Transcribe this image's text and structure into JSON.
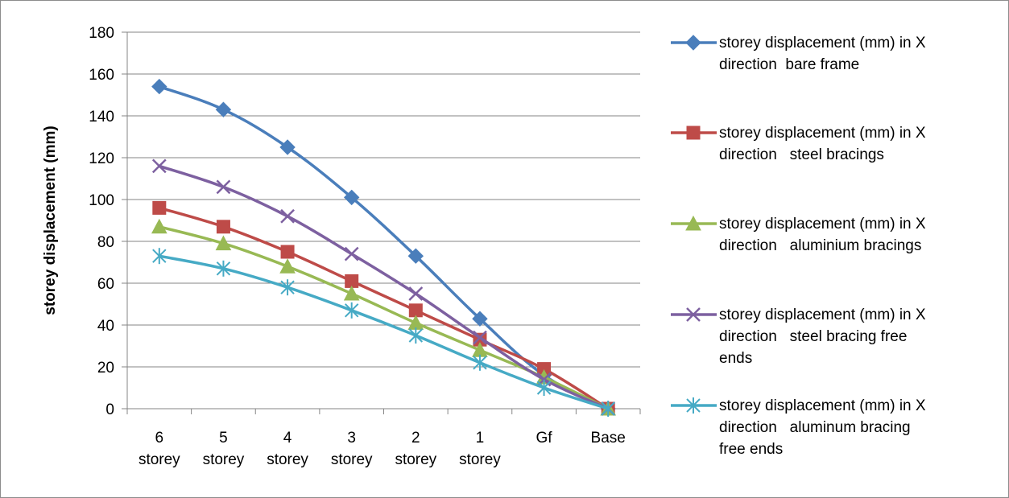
{
  "chart_data": {
    "type": "line",
    "title": "",
    "xlabel": "",
    "ylabel": "storey displacement (mm)",
    "categories": [
      "6 storey",
      "5 storey",
      "4 storey",
      "3 storey",
      "2 storey",
      "1 storey",
      "Gf",
      "Base"
    ],
    "ylim": [
      0,
      180
    ],
    "yticks": [
      0,
      20,
      40,
      60,
      80,
      100,
      120,
      140,
      160,
      180
    ],
    "grid": true,
    "legend_position": "right",
    "series": [
      {
        "name": "storey displacement (mm) in X direction  bare frame",
        "color": "#4a7ebb",
        "marker": "diamond",
        "values": [
          154,
          143,
          125,
          101,
          73,
          43,
          16,
          0
        ]
      },
      {
        "name": "storey displacement (mm) in X direction   steel bracings",
        "color": "#be4b48",
        "marker": "square",
        "values": [
          96,
          87,
          75,
          61,
          47,
          33,
          19,
          0
        ]
      },
      {
        "name": "storey displacement (mm) in X direction   aluminium bracings",
        "color": "#98b954",
        "marker": "triangle",
        "values": [
          87,
          79,
          68,
          55,
          41,
          28,
          15,
          0
        ]
      },
      {
        "name": "storey displacement (mm) in X direction   steel bracing free ends",
        "color": "#7d60a0",
        "marker": "x",
        "values": [
          116,
          106,
          92,
          74,
          55,
          34,
          14,
          0
        ]
      },
      {
        "name": "storey displacement (mm) in X direction   aluminum bracing free ends",
        "color": "#46aac5",
        "marker": "star",
        "values": [
          73,
          67,
          58,
          47,
          35,
          22,
          10,
          0
        ]
      }
    ]
  }
}
